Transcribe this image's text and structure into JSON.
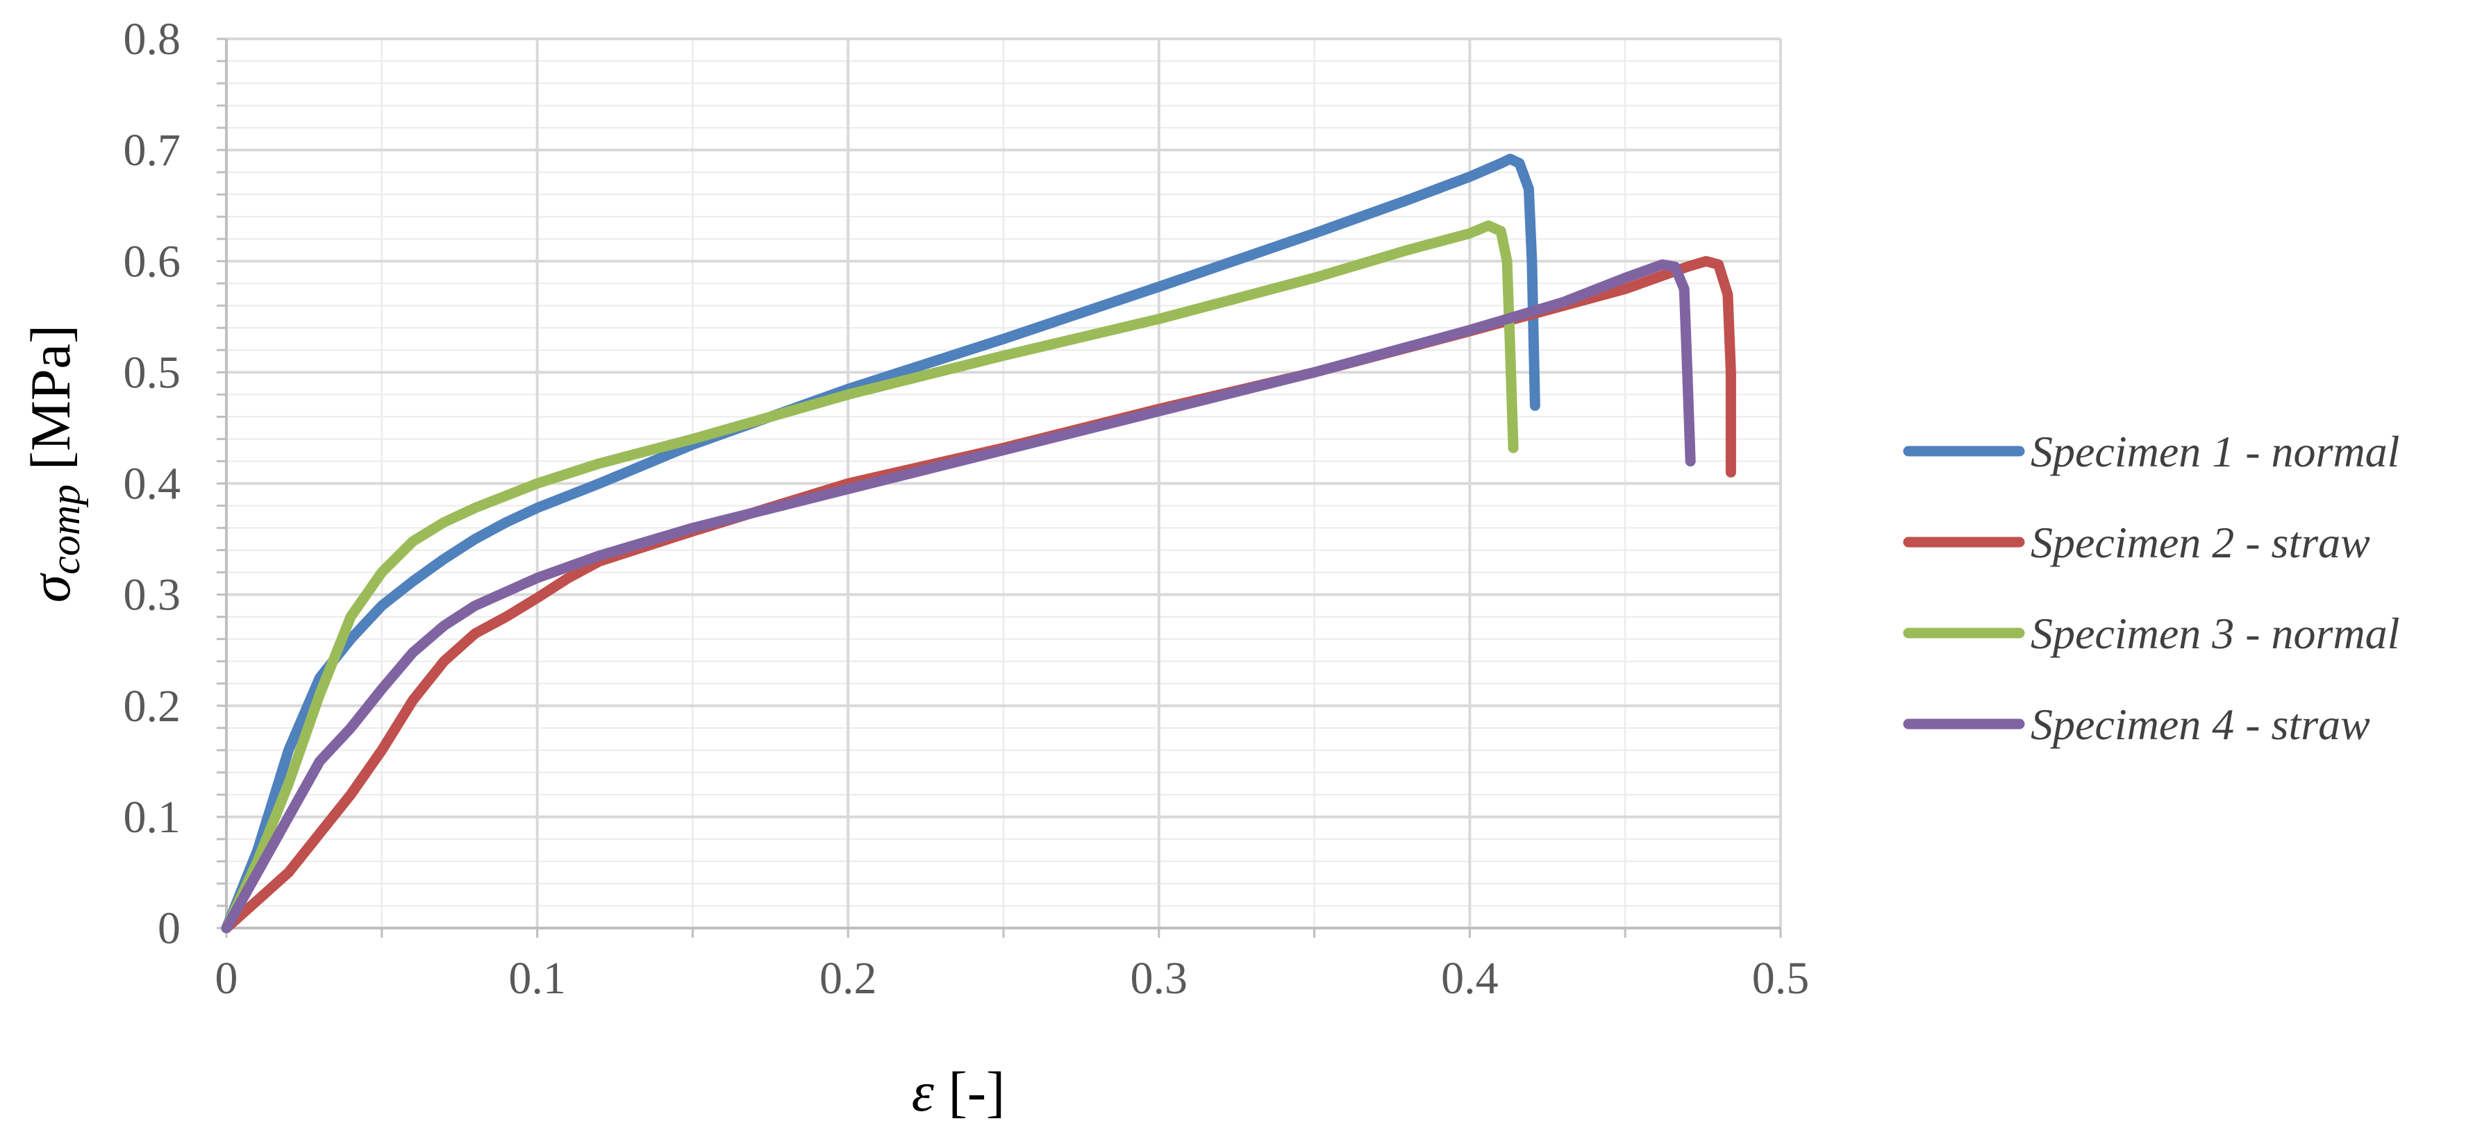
{
  "chart_data": {
    "type": "line",
    "title": "",
    "xlabel": {
      "symbol": "ε",
      "unit": "[-]"
    },
    "ylabel": {
      "symbol": "σ",
      "subscript": "comp",
      "unit": "[MPa]"
    },
    "xlim": [
      0,
      0.5
    ],
    "ylim": [
      0,
      0.8
    ],
    "x_ticks": [
      "0",
      "0.1",
      "0.2",
      "0.3",
      "0.4",
      "0.5"
    ],
    "y_ticks": [
      "0",
      "0.1",
      "0.2",
      "0.3",
      "0.4",
      "0.5",
      "0.6",
      "0.7",
      "0.8"
    ],
    "x_tick_values": [
      0,
      0.1,
      0.2,
      0.3,
      0.4,
      0.5
    ],
    "y_tick_values": [
      0,
      0.1,
      0.2,
      0.3,
      0.4,
      0.5,
      0.6,
      0.7,
      0.8
    ],
    "grid": true,
    "legend_position": "right",
    "series": [
      {
        "name": "Specimen 1 - normal",
        "color": "#4F81BD",
        "points": [
          [
            0,
            0
          ],
          [
            0.01,
            0.07
          ],
          [
            0.02,
            0.16
          ],
          [
            0.03,
            0.225
          ],
          [
            0.04,
            0.26
          ],
          [
            0.05,
            0.29
          ],
          [
            0.06,
            0.312
          ],
          [
            0.07,
            0.332
          ],
          [
            0.08,
            0.35
          ],
          [
            0.09,
            0.365
          ],
          [
            0.1,
            0.378
          ],
          [
            0.12,
            0.4
          ],
          [
            0.15,
            0.435
          ],
          [
            0.2,
            0.485
          ],
          [
            0.25,
            0.53
          ],
          [
            0.3,
            0.577
          ],
          [
            0.35,
            0.625
          ],
          [
            0.38,
            0.655
          ],
          [
            0.4,
            0.676
          ],
          [
            0.41,
            0.688
          ],
          [
            0.413,
            0.692
          ],
          [
            0.416,
            0.688
          ],
          [
            0.419,
            0.665
          ],
          [
            0.42,
            0.6
          ],
          [
            0.421,
            0.47
          ]
        ]
      },
      {
        "name": "Specimen 2 - straw",
        "color": "#C0504D",
        "points": [
          [
            0,
            0
          ],
          [
            0.02,
            0.05
          ],
          [
            0.04,
            0.12
          ],
          [
            0.045,
            0.14
          ],
          [
            0.05,
            0.16
          ],
          [
            0.06,
            0.205
          ],
          [
            0.07,
            0.24
          ],
          [
            0.08,
            0.265
          ],
          [
            0.09,
            0.28
          ],
          [
            0.1,
            0.297
          ],
          [
            0.11,
            0.315
          ],
          [
            0.12,
            0.33
          ],
          [
            0.15,
            0.357
          ],
          [
            0.2,
            0.4
          ],
          [
            0.25,
            0.432
          ],
          [
            0.3,
            0.467
          ],
          [
            0.35,
            0.5
          ],
          [
            0.4,
            0.537
          ],
          [
            0.45,
            0.575
          ],
          [
            0.47,
            0.595
          ],
          [
            0.476,
            0.6
          ],
          [
            0.48,
            0.597
          ],
          [
            0.483,
            0.57
          ],
          [
            0.484,
            0.5
          ],
          [
            0.484,
            0.41
          ]
        ]
      },
      {
        "name": "Specimen 3 - normal",
        "color": "#9BBB59",
        "points": [
          [
            0,
            0
          ],
          [
            0.01,
            0.06
          ],
          [
            0.02,
            0.13
          ],
          [
            0.03,
            0.21
          ],
          [
            0.04,
            0.28
          ],
          [
            0.05,
            0.32
          ],
          [
            0.06,
            0.348
          ],
          [
            0.07,
            0.365
          ],
          [
            0.08,
            0.378
          ],
          [
            0.1,
            0.4
          ],
          [
            0.12,
            0.418
          ],
          [
            0.15,
            0.44
          ],
          [
            0.2,
            0.48
          ],
          [
            0.25,
            0.515
          ],
          [
            0.3,
            0.548
          ],
          [
            0.35,
            0.585
          ],
          [
            0.38,
            0.61
          ],
          [
            0.4,
            0.625
          ],
          [
            0.406,
            0.632
          ],
          [
            0.41,
            0.627
          ],
          [
            0.412,
            0.6
          ],
          [
            0.413,
            0.52
          ],
          [
            0.414,
            0.432
          ]
        ]
      },
      {
        "name": "Specimen 4 - straw",
        "color": "#8064A2",
        "points": [
          [
            0,
            0
          ],
          [
            0.01,
            0.05
          ],
          [
            0.02,
            0.1
          ],
          [
            0.03,
            0.15
          ],
          [
            0.04,
            0.18
          ],
          [
            0.05,
            0.215
          ],
          [
            0.06,
            0.248
          ],
          [
            0.07,
            0.272
          ],
          [
            0.08,
            0.29
          ],
          [
            0.1,
            0.315
          ],
          [
            0.12,
            0.335
          ],
          [
            0.15,
            0.36
          ],
          [
            0.2,
            0.395
          ],
          [
            0.25,
            0.43
          ],
          [
            0.3,
            0.465
          ],
          [
            0.35,
            0.5
          ],
          [
            0.4,
            0.538
          ],
          [
            0.43,
            0.563
          ],
          [
            0.45,
            0.585
          ],
          [
            0.462,
            0.597
          ],
          [
            0.466,
            0.595
          ],
          [
            0.469,
            0.575
          ],
          [
            0.47,
            0.5
          ],
          [
            0.471,
            0.42
          ]
        ]
      }
    ]
  }
}
